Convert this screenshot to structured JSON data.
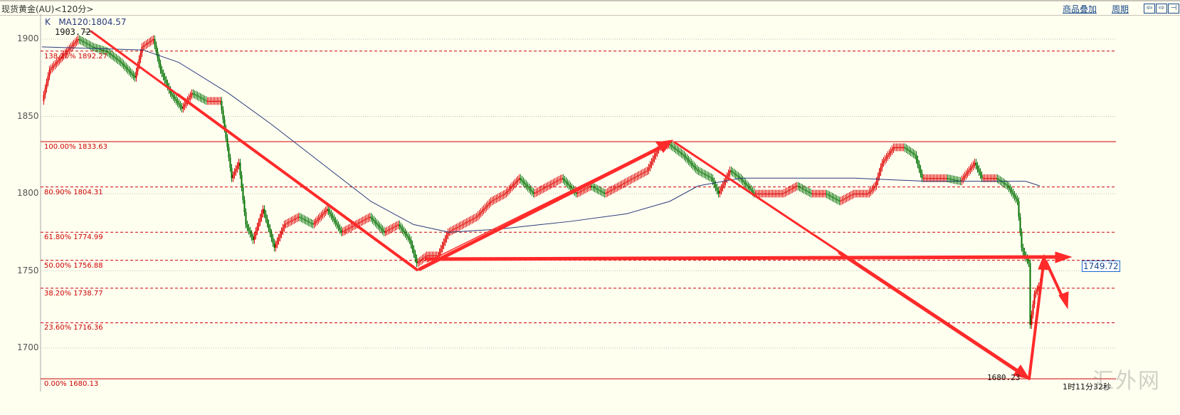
{
  "header": {
    "title": "现货黄金(AU)<120分>",
    "overlay_label": "商品叠加",
    "period_label": "周期",
    "nav_icons": [
      "arrow-left-icon",
      "arrow-right-icon",
      "split-panel-icon"
    ]
  },
  "chart_data": {
    "type": "candlestick",
    "indicator_label": "K",
    "ma_label": "MA120:1804.57",
    "ylim": [
      1675,
      1915
    ],
    "yticks": [
      1700,
      1750,
      1800,
      1850,
      1900
    ],
    "grid": true,
    "colors": {
      "up": "#e00000",
      "down": "#007000",
      "ma": "#2a3a7a",
      "fib": "#cc0000",
      "arrow": "#ff2a2a"
    },
    "high_label": "1903.72",
    "low_label": "1680.23",
    "last_price": "1749.72",
    "countdown": "1时11分32秒",
    "watermark": "汇外网",
    "fib_levels": [
      {
        "label": "138.20% 1892.27",
        "value": 1892.27,
        "solid": false
      },
      {
        "label": "100.00% 1833.63",
        "value": 1833.63,
        "solid": true
      },
      {
        "label": "80.90% 1804.31",
        "value": 1804.31,
        "solid": false
      },
      {
        "label": "61.80% 1774.99",
        "value": 1774.99,
        "solid": false
      },
      {
        "label": "50.00% 1756.88",
        "value": 1756.88,
        "solid": false
      },
      {
        "label": "38.20% 1738.77",
        "value": 1738.77,
        "solid": false
      },
      {
        "label": "23.60% 1716.36",
        "value": 1716.36,
        "solid": false
      },
      {
        "label": "0.00% 1680.13",
        "value": 1680.13,
        "solid": true
      }
    ],
    "closes": [
      [
        0,
        1860
      ],
      [
        5,
        1880
      ],
      [
        15,
        1890
      ],
      [
        25,
        1900
      ],
      [
        35,
        1895
      ],
      [
        45,
        1892
      ],
      [
        55,
        1885
      ],
      [
        65,
        1875
      ],
      [
        70,
        1895
      ],
      [
        78,
        1900
      ],
      [
        83,
        1880
      ],
      [
        90,
        1865
      ],
      [
        98,
        1855
      ],
      [
        105,
        1865
      ],
      [
        115,
        1860
      ],
      [
        125,
        1860
      ],
      [
        130,
        1830
      ],
      [
        133,
        1810
      ],
      [
        138,
        1820
      ],
      [
        143,
        1780
      ],
      [
        148,
        1770
      ],
      [
        155,
        1790
      ],
      [
        163,
        1765
      ],
      [
        170,
        1780
      ],
      [
        180,
        1785
      ],
      [
        190,
        1780
      ],
      [
        200,
        1790
      ],
      [
        210,
        1775
      ],
      [
        220,
        1780
      ],
      [
        230,
        1785
      ],
      [
        240,
        1775
      ],
      [
        250,
        1780
      ],
      [
        258,
        1770
      ],
      [
        263,
        1755
      ],
      [
        270,
        1760
      ],
      [
        278,
        1760
      ],
      [
        285,
        1775
      ],
      [
        295,
        1780
      ],
      [
        305,
        1785
      ],
      [
        315,
        1795
      ],
      [
        325,
        1800
      ],
      [
        335,
        1810
      ],
      [
        345,
        1800
      ],
      [
        355,
        1805
      ],
      [
        365,
        1810
      ],
      [
        375,
        1800
      ],
      [
        385,
        1805
      ],
      [
        395,
        1800
      ],
      [
        405,
        1805
      ],
      [
        415,
        1810
      ],
      [
        425,
        1815
      ],
      [
        433,
        1830
      ],
      [
        440,
        1832
      ],
      [
        450,
        1825
      ],
      [
        460,
        1815
      ],
      [
        470,
        1810
      ],
      [
        475,
        1800
      ],
      [
        483,
        1815
      ],
      [
        490,
        1810
      ],
      [
        500,
        1800
      ],
      [
        510,
        1800
      ],
      [
        520,
        1800
      ],
      [
        530,
        1805
      ],
      [
        540,
        1800
      ],
      [
        550,
        1800
      ],
      [
        560,
        1795
      ],
      [
        570,
        1800
      ],
      [
        580,
        1800
      ],
      [
        585,
        1805
      ],
      [
        590,
        1820
      ],
      [
        598,
        1830
      ],
      [
        605,
        1830
      ],
      [
        613,
        1825
      ],
      [
        618,
        1810
      ],
      [
        625,
        1810
      ],
      [
        635,
        1810
      ],
      [
        645,
        1808
      ],
      [
        655,
        1820
      ],
      [
        660,
        1810
      ],
      [
        670,
        1810
      ],
      [
        678,
        1805
      ],
      [
        685,
        1795
      ],
      [
        688,
        1765
      ],
      [
        690,
        1760
      ],
      [
        693,
        1755
      ],
      [
        694,
        1715
      ],
      [
        697,
        1735
      ],
      [
        700,
        1740
      ],
      [
        702,
        1745
      ]
    ],
    "ma120": [
      [
        0,
        1895
      ],
      [
        71,
        1893
      ],
      [
        96,
        1885
      ],
      [
        131,
        1865
      ],
      [
        161,
        1845
      ],
      [
        196,
        1820
      ],
      [
        231,
        1795
      ],
      [
        261,
        1780
      ],
      [
        286,
        1775
      ],
      [
        321,
        1777
      ],
      [
        371,
        1782
      ],
      [
        411,
        1787
      ],
      [
        441,
        1795
      ],
      [
        461,
        1805
      ],
      [
        491,
        1810
      ],
      [
        571,
        1810
      ],
      [
        621,
        1808
      ],
      [
        691,
        1808
      ],
      [
        701,
        1805
      ]
    ]
  }
}
